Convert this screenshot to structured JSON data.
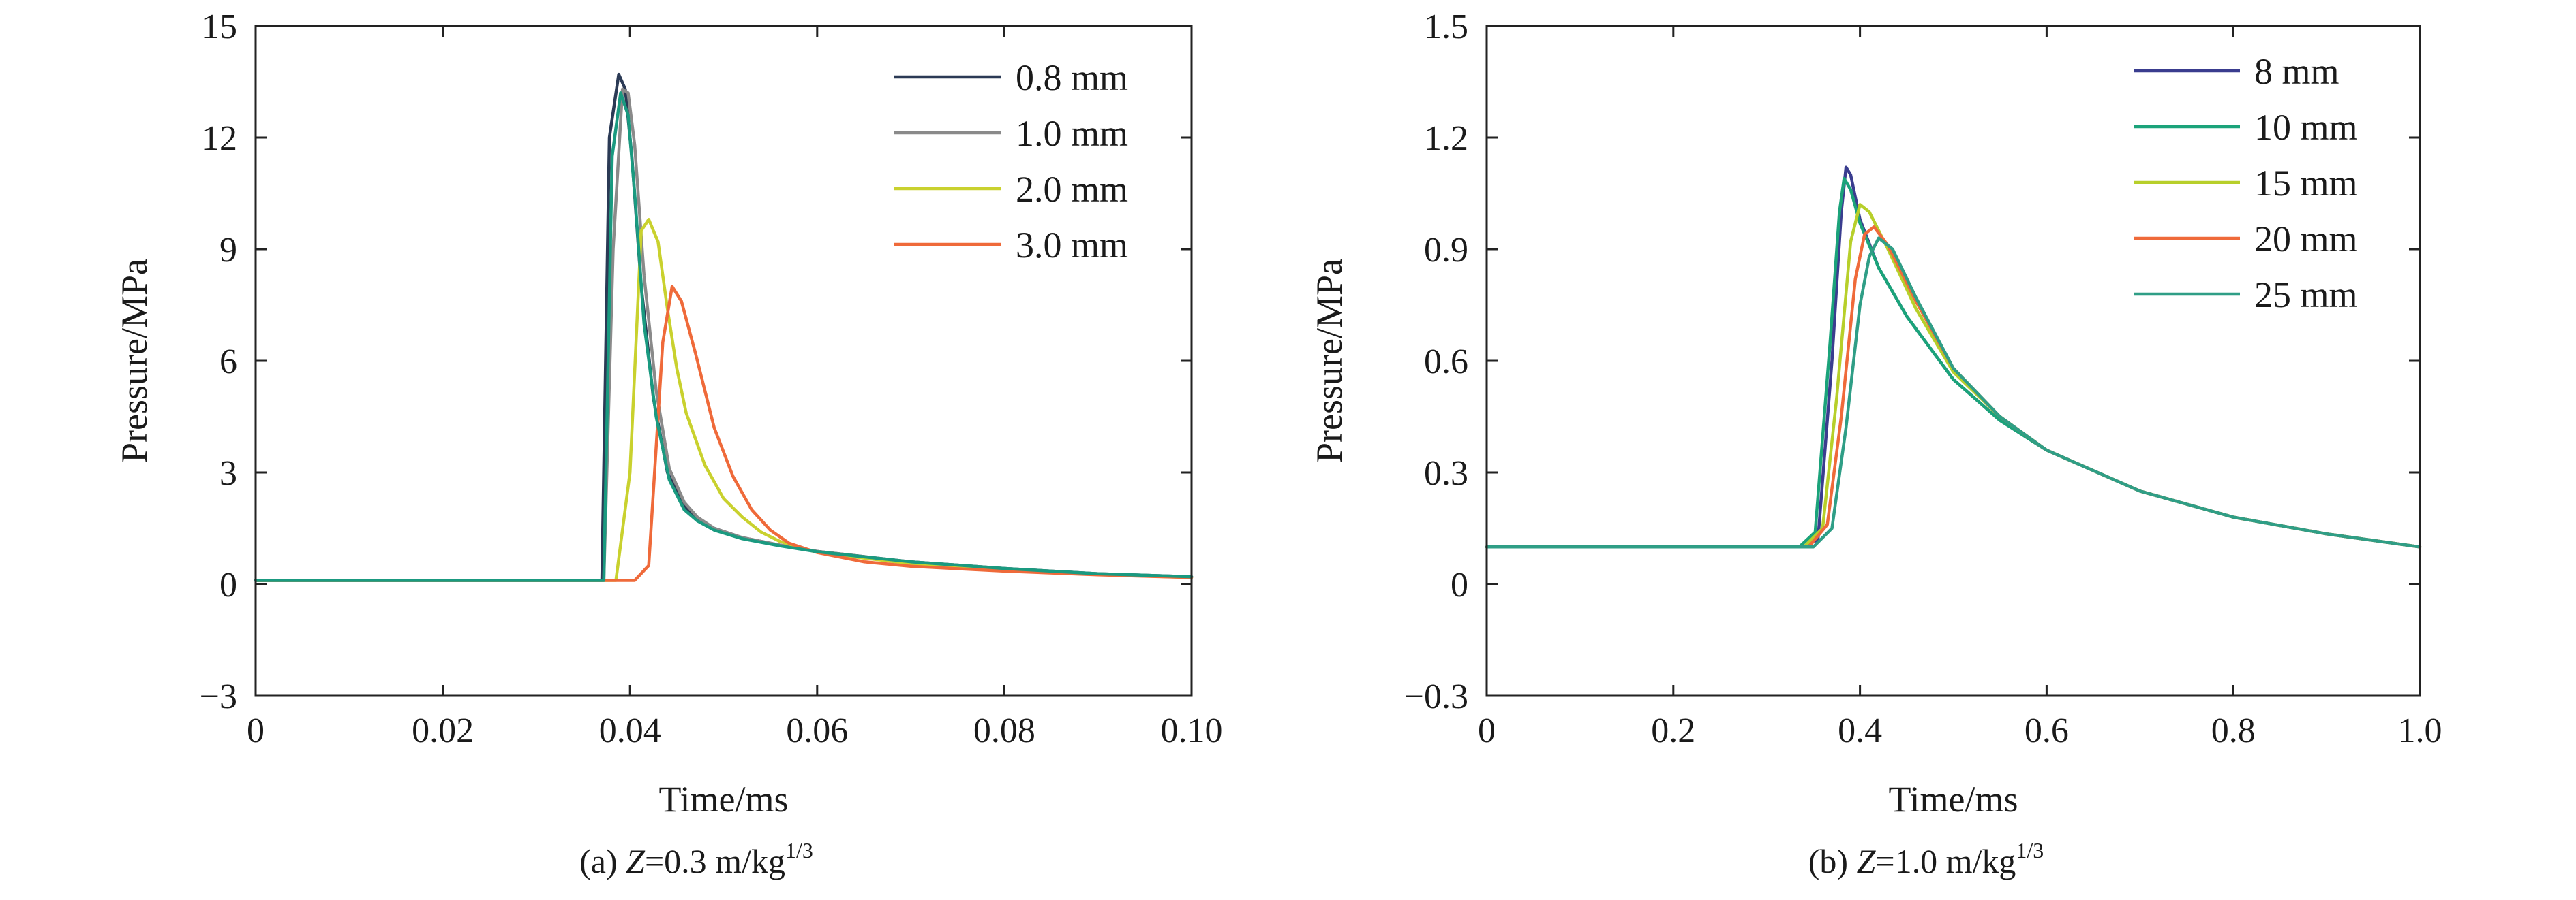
{
  "chart_data": [
    {
      "type": "line",
      "xlabel": "Time/ms",
      "ylabel": "Pressure/MPa",
      "xlim": [
        0,
        0.1
      ],
      "ylim": [
        -3,
        15
      ],
      "xticks": [
        0,
        0.02,
        0.04,
        0.06,
        0.08,
        0.1
      ],
      "xtick_labels": [
        "0",
        "0.02",
        "0.04",
        "0.06",
        "0.08",
        "0.10"
      ],
      "yticks": [
        -3,
        0,
        3,
        6,
        9,
        12,
        15
      ],
      "ytick_labels": [
        "−3",
        "0",
        "3",
        "6",
        "9",
        "12",
        "15"
      ],
      "grid": false,
      "legend_position": "top-right",
      "caption": {
        "prefix": "(a) ",
        "var": "Z",
        "value": "=0.3 m/kg",
        "sup": "1/3"
      },
      "series": [
        {
          "name": "0.8 mm",
          "color": "#2b3a55",
          "x": [
            0,
            0.037,
            0.0378,
            0.0388,
            0.0395,
            0.0402,
            0.0412,
            0.0425,
            0.044,
            0.0455,
            0.047,
            0.049,
            0.052,
            0.056,
            0.06,
            0.07,
            0.08,
            0.09,
            0.1
          ],
          "y": [
            0.1,
            0.1,
            12.0,
            13.7,
            13.3,
            11.5,
            8.0,
            5.0,
            3.0,
            2.2,
            1.8,
            1.5,
            1.25,
            1.05,
            0.88,
            0.6,
            0.42,
            0.28,
            0.2
          ]
        },
        {
          "name": "1.0 mm",
          "color": "#8a8a8a",
          "x": [
            0,
            0.0372,
            0.0382,
            0.0392,
            0.0398,
            0.0405,
            0.0415,
            0.0428,
            0.0442,
            0.0458,
            0.0472,
            0.049,
            0.052,
            0.056,
            0.06,
            0.07,
            0.08,
            0.09,
            0.1
          ],
          "y": [
            0.1,
            0.1,
            9.0,
            13.3,
            13.2,
            11.8,
            8.3,
            5.2,
            3.1,
            2.2,
            1.8,
            1.5,
            1.25,
            1.05,
            0.88,
            0.6,
            0.42,
            0.28,
            0.2
          ]
        },
        {
          "name": "2.0 mm",
          "color": "#c9d12e",
          "x": [
            0,
            0.0385,
            0.04,
            0.0412,
            0.042,
            0.043,
            0.044,
            0.045,
            0.046,
            0.048,
            0.05,
            0.052,
            0.054,
            0.056,
            0.06,
            0.07,
            0.08,
            0.09,
            0.1
          ],
          "y": [
            0.1,
            0.1,
            3.0,
            9.5,
            9.8,
            9.2,
            7.4,
            5.8,
            4.6,
            3.2,
            2.3,
            1.8,
            1.4,
            1.15,
            0.85,
            0.55,
            0.38,
            0.26,
            0.18
          ]
        },
        {
          "name": "3.0 mm",
          "color": "#ef6a3a",
          "x": [
            0,
            0.0405,
            0.042,
            0.0435,
            0.0445,
            0.0455,
            0.047,
            0.049,
            0.051,
            0.053,
            0.055,
            0.057,
            0.06,
            0.065,
            0.07,
            0.08,
            0.09,
            0.1
          ],
          "y": [
            0.1,
            0.1,
            0.5,
            6.5,
            8.0,
            7.6,
            6.2,
            4.2,
            2.9,
            2.0,
            1.45,
            1.1,
            0.85,
            0.6,
            0.48,
            0.35,
            0.25,
            0.18
          ]
        },
        {
          "name": "",
          "color": "#1a9a80",
          "x": [
            0,
            0.0372,
            0.0381,
            0.039,
            0.0398,
            0.0405,
            0.0415,
            0.0428,
            0.0442,
            0.0458,
            0.0472,
            0.049,
            0.052,
            0.056,
            0.06,
            0.07,
            0.08,
            0.09,
            0.1
          ],
          "y": [
            0.1,
            0.1,
            11.5,
            13.2,
            12.6,
            10.5,
            7.0,
            4.5,
            2.8,
            2.0,
            1.7,
            1.45,
            1.22,
            1.03,
            0.87,
            0.6,
            0.42,
            0.28,
            0.2
          ]
        }
      ]
    },
    {
      "type": "line",
      "xlabel": "Time/ms",
      "ylabel": "Pressure/MPa",
      "xlim": [
        0,
        1.0
      ],
      "ylim": [
        -0.3,
        1.5
      ],
      "xticks": [
        0,
        0.2,
        0.4,
        0.6,
        0.8,
        1.0
      ],
      "xtick_labels": [
        "0",
        "0.2",
        "0.4",
        "0.6",
        "0.8",
        "1.0"
      ],
      "yticks": [
        -0.3,
        0,
        0.3,
        0.6,
        0.9,
        1.2,
        1.5
      ],
      "ytick_labels": [
        "−0.3",
        "0",
        "0.3",
        "0.6",
        "0.9",
        "1.2",
        "1.5"
      ],
      "grid": false,
      "legend_position": "top-right",
      "caption": {
        "prefix": "(b) ",
        "var": "Z",
        "value": "=1.0 m/kg",
        "sup": "1/3"
      },
      "series": [
        {
          "name": "8 mm",
          "color": "#3a3d8f",
          "x": [
            0,
            0.34,
            0.355,
            0.37,
            0.38,
            0.385,
            0.39,
            0.4,
            0.42,
            0.45,
            0.5,
            0.55,
            0.6,
            0.7,
            0.8,
            0.9,
            1.0
          ],
          "y": [
            0.1,
            0.1,
            0.12,
            0.6,
            1.0,
            1.12,
            1.1,
            0.98,
            0.85,
            0.72,
            0.55,
            0.44,
            0.36,
            0.25,
            0.18,
            0.135,
            0.1
          ]
        },
        {
          "name": "10 mm",
          "color": "#1ba37a",
          "x": [
            0,
            0.335,
            0.352,
            0.368,
            0.378,
            0.383,
            0.39,
            0.4,
            0.42,
            0.45,
            0.5,
            0.55,
            0.6,
            0.7,
            0.8,
            0.9,
            1.0
          ],
          "y": [
            0.1,
            0.1,
            0.14,
            0.65,
            1.0,
            1.09,
            1.06,
            0.97,
            0.85,
            0.72,
            0.55,
            0.44,
            0.36,
            0.25,
            0.18,
            0.135,
            0.1
          ]
        },
        {
          "name": "15 mm",
          "color": "#b7cf2a",
          "x": [
            0,
            0.34,
            0.36,
            0.375,
            0.39,
            0.4,
            0.41,
            0.43,
            0.46,
            0.5,
            0.55,
            0.6,
            0.7,
            0.8,
            0.9,
            1.0
          ],
          "y": [
            0.1,
            0.1,
            0.15,
            0.5,
            0.92,
            1.02,
            1.0,
            0.9,
            0.74,
            0.57,
            0.45,
            0.36,
            0.25,
            0.18,
            0.135,
            0.1
          ]
        },
        {
          "name": "20 mm",
          "color": "#ef6a3a",
          "x": [
            0,
            0.345,
            0.365,
            0.38,
            0.395,
            0.405,
            0.415,
            0.43,
            0.46,
            0.5,
            0.55,
            0.6,
            0.7,
            0.8,
            0.9,
            1.0
          ],
          "y": [
            0.1,
            0.1,
            0.16,
            0.45,
            0.82,
            0.94,
            0.96,
            0.91,
            0.76,
            0.58,
            0.45,
            0.36,
            0.25,
            0.18,
            0.135,
            0.1
          ]
        },
        {
          "name": "25 mm",
          "color": "#2f9e86",
          "x": [
            0,
            0.35,
            0.37,
            0.385,
            0.4,
            0.41,
            0.42,
            0.435,
            0.46,
            0.5,
            0.55,
            0.6,
            0.7,
            0.8,
            0.9,
            1.0
          ],
          "y": [
            0.1,
            0.1,
            0.15,
            0.42,
            0.75,
            0.88,
            0.93,
            0.9,
            0.77,
            0.58,
            0.45,
            0.36,
            0.25,
            0.18,
            0.135,
            0.1
          ]
        }
      ]
    }
  ]
}
